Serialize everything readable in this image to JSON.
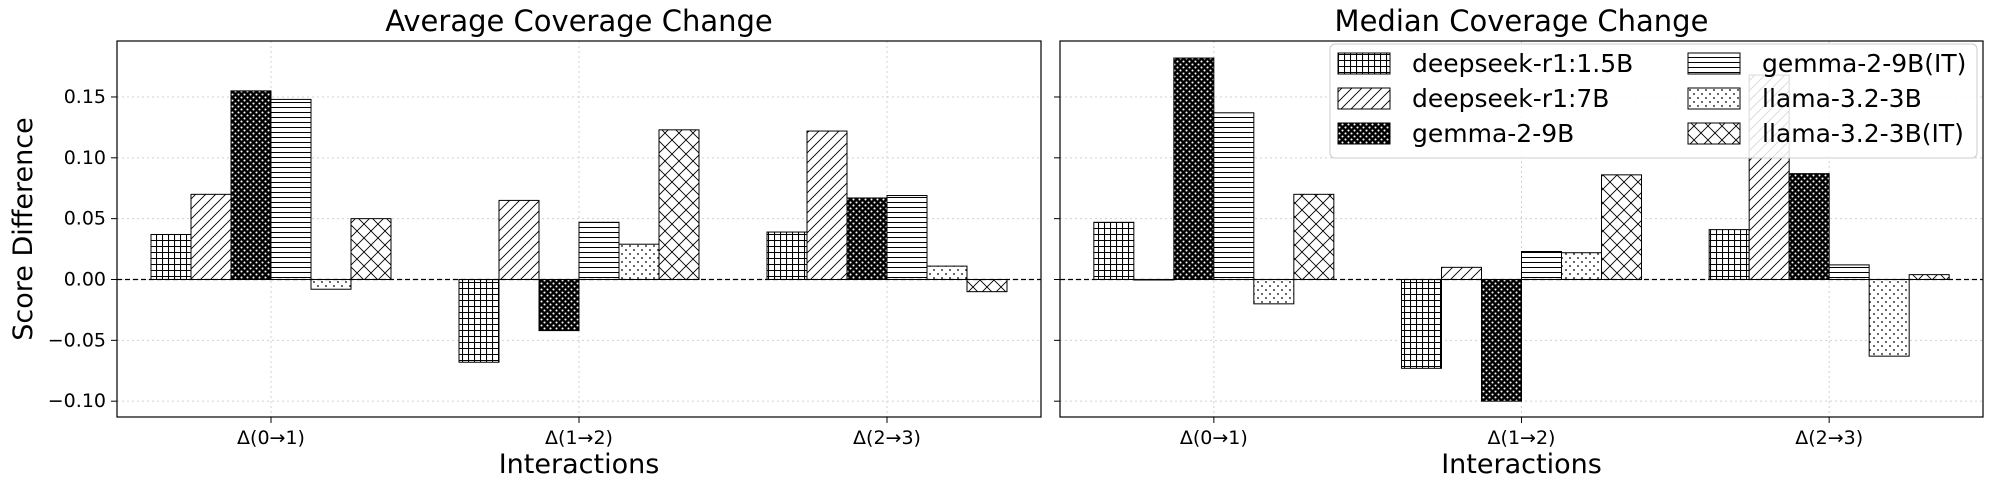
{
  "chart_data": [
    {
      "type": "bar",
      "title": "Average Coverage Change",
      "xlabel": "Interactions",
      "ylabel": "Score Difference",
      "categories": [
        "Δ(0→1)",
        "Δ(1→2)",
        "Δ(2→3)"
      ],
      "ylim": [
        -0.113,
        0.196
      ],
      "yticks": [
        "0.15",
        "0.10",
        "0.05",
        "0.00",
        "−0.05",
        "−0.10"
      ],
      "ytick_values": [
        0.15,
        0.1,
        0.05,
        0.0,
        -0.05,
        -0.1
      ],
      "grid": true,
      "series": [
        {
          "name": "deepseek-r1:1.5B",
          "values": [
            0.037,
            -0.068,
            0.039
          ]
        },
        {
          "name": "deepseek-r1:7B",
          "values": [
            0.07,
            0.065,
            0.122
          ]
        },
        {
          "name": "gemma-2-9B",
          "values": [
            0.155,
            -0.042,
            0.067
          ]
        },
        {
          "name": "gemma-2-9B(IT)",
          "values": [
            0.148,
            0.047,
            0.069
          ]
        },
        {
          "name": "llama-3.2-3B",
          "values": [
            -0.008,
            0.029,
            0.011
          ]
        },
        {
          "name": "llama-3.2-3B(IT)",
          "values": [
            0.05,
            0.123,
            -0.01
          ]
        }
      ]
    },
    {
      "type": "bar",
      "title": "Median Coverage Change",
      "xlabel": "Interactions",
      "ylabel": "",
      "categories": [
        "Δ(0→1)",
        "Δ(1→2)",
        "Δ(2→3)"
      ],
      "ylim": [
        -0.113,
        0.196
      ],
      "grid": true,
      "legend": "top-right",
      "series": [
        {
          "name": "deepseek-r1:1.5B",
          "values": [
            0.047,
            -0.073,
            0.041
          ]
        },
        {
          "name": "deepseek-r1:7B",
          "values": [
            0.0,
            0.01,
            0.168
          ]
        },
        {
          "name": "gemma-2-9B",
          "values": [
            0.182,
            -0.1,
            0.087
          ]
        },
        {
          "name": "gemma-2-9B(IT)",
          "values": [
            0.137,
            0.023,
            0.012
          ]
        },
        {
          "name": "llama-3.2-3B",
          "values": [
            -0.02,
            0.022,
            -0.063
          ]
        },
        {
          "name": "llama-3.2-3B(IT)",
          "values": [
            0.07,
            0.086,
            0.004
          ]
        }
      ]
    }
  ],
  "legend": {
    "entries": [
      {
        "label": "deepseek-r1:1.5B",
        "pattern": "grid"
      },
      {
        "label": "deepseek-r1:7B",
        "pattern": "diag"
      },
      {
        "label": "gemma-2-9B",
        "pattern": "dots"
      },
      {
        "label": "gemma-2-9B(IT)",
        "pattern": "hlines"
      },
      {
        "label": "llama-3.2-3B",
        "pattern": "sparse-dots"
      },
      {
        "label": "llama-3.2-3B(IT)",
        "pattern": "cross"
      }
    ]
  }
}
